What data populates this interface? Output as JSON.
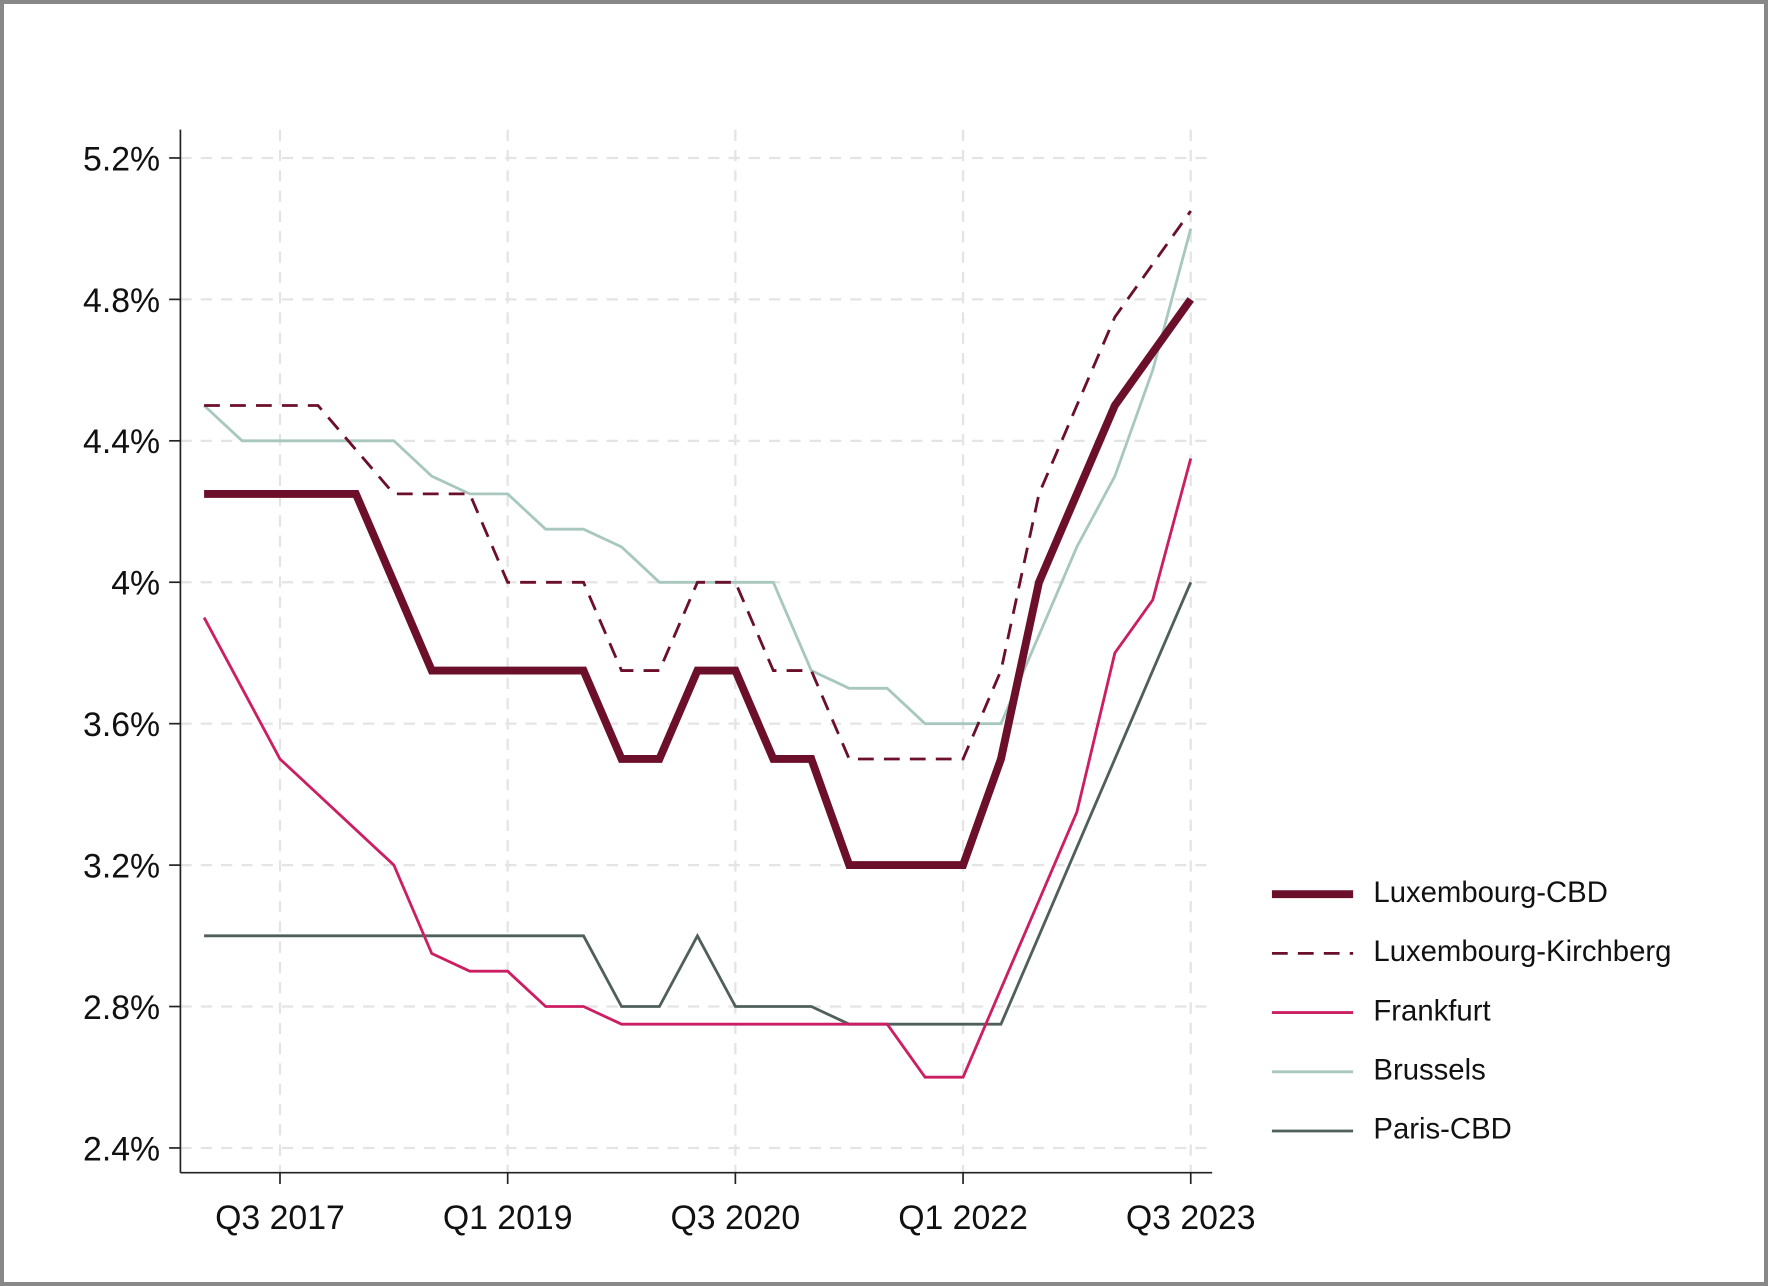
{
  "chart_data": {
    "type": "line",
    "categories": [
      null,
      null,
      "Q3 2017",
      null,
      null,
      null,
      null,
      null,
      "Q1 2019",
      null,
      null,
      null,
      null,
      null,
      "Q3 2020",
      null,
      null,
      null,
      null,
      null,
      "Q1 2022",
      null,
      null,
      null,
      null,
      null,
      "Q3 2023"
    ],
    "ylim": [
      2.33,
      5.28
    ],
    "yticks": [
      {
        "value": 2.4,
        "label": "2.4%"
      },
      {
        "value": 2.8,
        "label": "2.8%"
      },
      {
        "value": 3.2,
        "label": "3.2%"
      },
      {
        "value": 3.6,
        "label": "3.6%"
      },
      {
        "value": 4,
        "label": "4%"
      },
      {
        "value": 4.4,
        "label": "4.4%"
      },
      {
        "value": 4.8,
        "label": "4.8%"
      },
      {
        "value": 5.2,
        "label": "5.2%"
      }
    ],
    "grid": true,
    "legend": "right",
    "series": [
      {
        "name": "Luxembourg-CBD",
        "color": "#6b0f2a",
        "style": "bold",
        "values": [
          4.25,
          4.25,
          4.25,
          4.25,
          4.25,
          4.0,
          3.75,
          3.75,
          3.75,
          3.75,
          3.75,
          3.5,
          3.5,
          3.75,
          3.75,
          3.5,
          3.5,
          3.2,
          3.2,
          3.2,
          3.2,
          3.5,
          4.0,
          4.25,
          4.5,
          4.65,
          4.8
        ]
      },
      {
        "name": "Luxembourg-Kirchberg",
        "color": "#6b0f2a",
        "style": "dashed",
        "values": [
          4.5,
          4.5,
          4.5,
          4.5,
          4.375,
          4.25,
          4.25,
          4.25,
          4.0,
          4.0,
          4.0,
          3.75,
          3.75,
          4.0,
          4.0,
          3.75,
          3.75,
          3.5,
          3.5,
          3.5,
          3.5,
          3.75,
          4.25,
          4.5,
          4.75,
          4.9,
          5.05
        ]
      },
      {
        "name": "Frankfurt",
        "color": "#cc1f63",
        "style": "solid",
        "values": [
          3.9,
          3.7,
          3.5,
          3.4,
          3.3,
          3.2,
          2.95,
          2.9,
          2.9,
          2.8,
          2.8,
          2.75,
          2.75,
          2.75,
          2.75,
          2.75,
          2.75,
          2.75,
          2.75,
          2.6,
          2.6,
          2.85,
          3.1,
          3.35,
          3.8,
          3.95,
          4.35
        ]
      },
      {
        "name": "Brussels",
        "color": "#a8c8bf",
        "style": "solid",
        "values": [
          4.5,
          4.4,
          4.4,
          4.4,
          4.4,
          4.4,
          4.3,
          4.25,
          4.25,
          4.15,
          4.15,
          4.1,
          4.0,
          4.0,
          4.0,
          4.0,
          3.75,
          3.7,
          3.7,
          3.6,
          3.6,
          3.6,
          3.85,
          4.1,
          4.3,
          4.6,
          5.0
        ]
      },
      {
        "name": "Paris-CBD",
        "color": "#4f5f5c",
        "style": "solid",
        "values": [
          3.0,
          3.0,
          3.0,
          3.0,
          3.0,
          3.0,
          3.0,
          3.0,
          3.0,
          3.0,
          3.0,
          2.8,
          2.8,
          3.0,
          2.8,
          2.8,
          2.8,
          2.75,
          2.75,
          2.75,
          2.75,
          2.75,
          3.0,
          3.25,
          3.5,
          3.75,
          4.0
        ]
      }
    ]
  }
}
